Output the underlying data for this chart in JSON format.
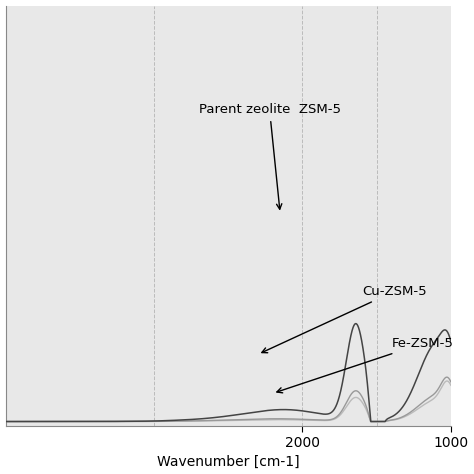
{
  "title": "",
  "xlabel": "Wavenumber [cm-1]",
  "ylabel": "",
  "xlim": [
    4000,
    1000
  ],
  "background_color": "#e8e8e8",
  "grid_color": "#bbbbbb",
  "line_color_parent": "#444444",
  "line_color_cu": "#999999",
  "line_color_fe": "#bbbbbb",
  "annotation_parent": "Parent zeolite  ZSM-5",
  "annotation_cu": "Cu-ZSM-5",
  "annotation_fe": "Fe-ZSM-5",
  "xtick_labels": [
    "2000",
    "1000"
  ],
  "xtick_positions": [
    2000,
    1000
  ]
}
